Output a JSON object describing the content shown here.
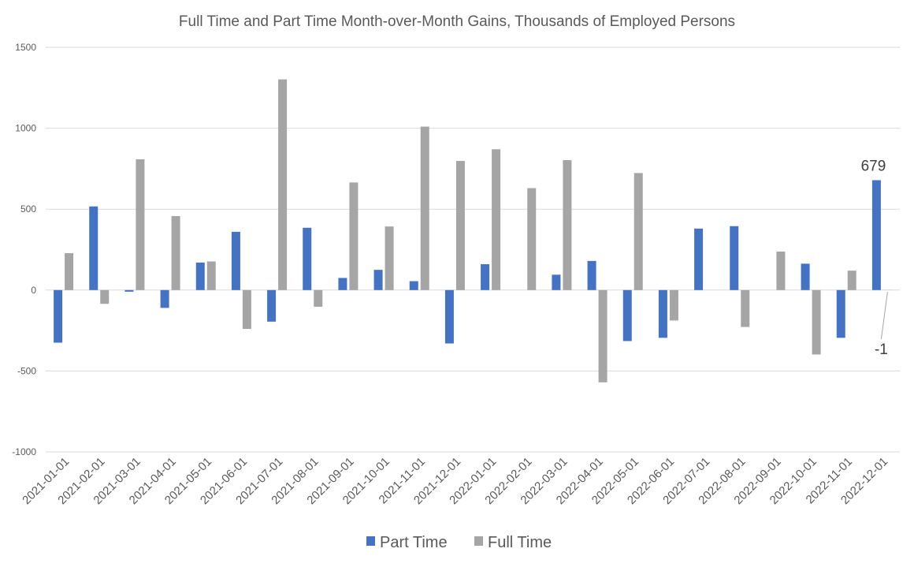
{
  "chart_data": {
    "type": "bar",
    "title": "Full Time and Part Time Month-over-Month Gains, Thousands of Employed Persons",
    "xlabel": "",
    "ylabel": "",
    "ylim": [
      -1000,
      1500
    ],
    "yticks": [
      1500,
      1000,
      500,
      0,
      -500,
      -1000
    ],
    "grid": true,
    "legend_position": "bottom",
    "categories": [
      "2021-01-01",
      "2021-02-01",
      "2021-03-01",
      "2021-04-01",
      "2021-05-01",
      "2021-06-01",
      "2021-07-01",
      "2021-08-01",
      "2021-09-01",
      "2021-10-01",
      "2021-11-01",
      "2021-12-01",
      "2022-01-01",
      "2022-02-01",
      "2022-03-01",
      "2022-04-01",
      "2022-05-01",
      "2022-06-01",
      "2022-07-01",
      "2022-08-01",
      "2022-09-01",
      "2022-10-01",
      "2022-11-01",
      "2022-12-01"
    ],
    "series": [
      {
        "name": "Part Time",
        "color": "#4472c4",
        "values": [
          -325,
          517,
          -10,
          -110,
          170,
          360,
          -195,
          385,
          75,
          125,
          55,
          -330,
          160,
          0,
          95,
          180,
          -315,
          -295,
          380,
          395,
          0,
          163,
          -295,
          679
        ]
      },
      {
        "name": "Full Time",
        "color": "#a5a5a5",
        "values": [
          228,
          -85,
          808,
          457,
          177,
          -240,
          1302,
          -103,
          665,
          393,
          1010,
          798,
          870,
          630,
          803,
          -570,
          723,
          -188,
          0,
          -228,
          238,
          -398,
          120,
          -1
        ]
      }
    ],
    "annotations": [
      {
        "text": "679",
        "category": "2022-12-01",
        "series": "Part Time"
      },
      {
        "text": "-1",
        "category": "2022-12-01",
        "series": "Full Time"
      }
    ]
  }
}
